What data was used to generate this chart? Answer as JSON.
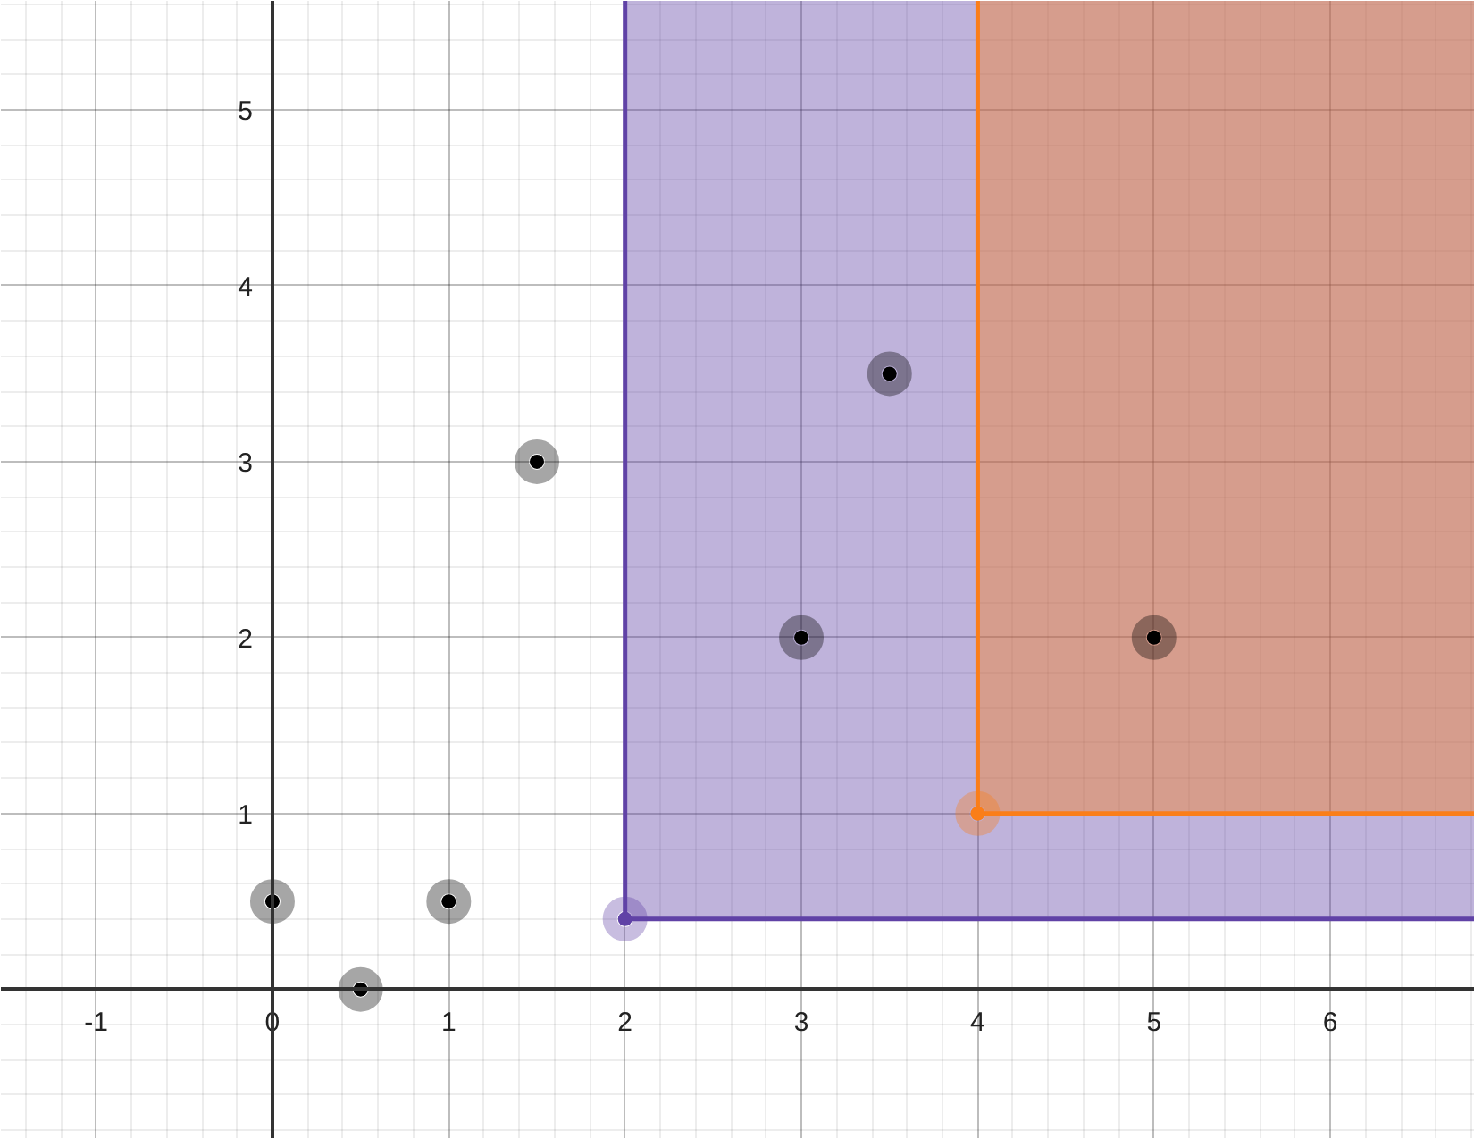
{
  "chart_data": {
    "type": "scatter",
    "xlim": [
      -1.54,
      6.82
    ],
    "ylim": [
      -0.85,
      5.62
    ],
    "xticks": [
      -1,
      0,
      1,
      2,
      3,
      4,
      5,
      6
    ],
    "yticks": [
      {
        "value": 0,
        "label": null
      },
      1,
      2,
      3,
      4,
      5
    ],
    "grid": true,
    "marker": "circle",
    "series": [
      {
        "type": "line",
        "color": "#6042a6",
        "marker": "none",
        "x": [
          2,
          2,
          6.82
        ],
        "values": [
          5.62,
          0.4,
          0.4
        ],
        "lower": [
          null,
          0.4,
          0.4
        ],
        "upper": [
          null,
          5.62,
          5.62
        ]
      },
      {
        "type": "line",
        "color": "#fa7e19",
        "marker": "none",
        "x": [
          4,
          4,
          6.82
        ],
        "values": [
          5.62,
          1,
          1
        ],
        "lower": [
          null,
          1,
          1
        ],
        "upper": [
          null,
          5.62,
          5.62
        ]
      },
      {
        "type": "scatter",
        "color": "#6042a6",
        "x": [
          2
        ],
        "values": [
          0.4
        ]
      },
      {
        "type": "scatter",
        "color": "#fa7e19",
        "x": [
          4
        ],
        "values": [
          1
        ]
      },
      {
        "color": "#000000",
        "x": [
          0,
          0.5,
          1,
          1.5,
          3,
          3.5,
          5
        ],
        "values": [
          0.5,
          0,
          0.5,
          3,
          2,
          3.5,
          2
        ]
      }
    ]
  }
}
